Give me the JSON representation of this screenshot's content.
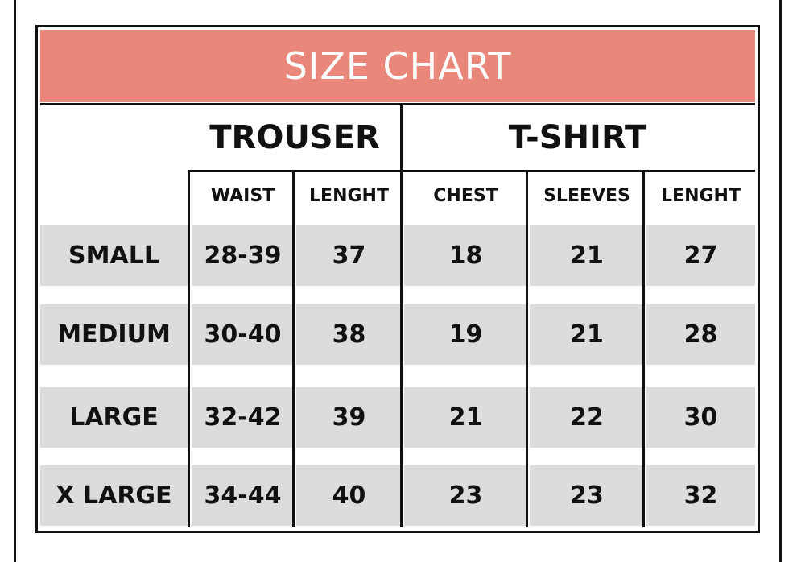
{
  "title": "SIZE CHART",
  "colors": {
    "banner": "#e8877a",
    "row_band": "#dcdcdc",
    "lines": "#111111"
  },
  "groups": [
    {
      "label": "TROUSER"
    },
    {
      "label": "T-SHIRT"
    }
  ],
  "columns": [
    "WAIST",
    "LENGHT",
    "CHEST",
    "SLEEVES",
    "LENGHT"
  ],
  "rows": [
    {
      "size": "SMALL",
      "values": [
        "28-39",
        "37",
        "18",
        "21",
        "27"
      ]
    },
    {
      "size": "MEDIUM",
      "values": [
        "30-40",
        "38",
        "19",
        "21",
        "28"
      ]
    },
    {
      "size": "LARGE",
      "values": [
        "32-42",
        "39",
        "21",
        "22",
        "30"
      ]
    },
    {
      "size": "X LARGE",
      "values": [
        "34-44",
        "40",
        "23",
        "23",
        "32"
      ]
    }
  ]
}
